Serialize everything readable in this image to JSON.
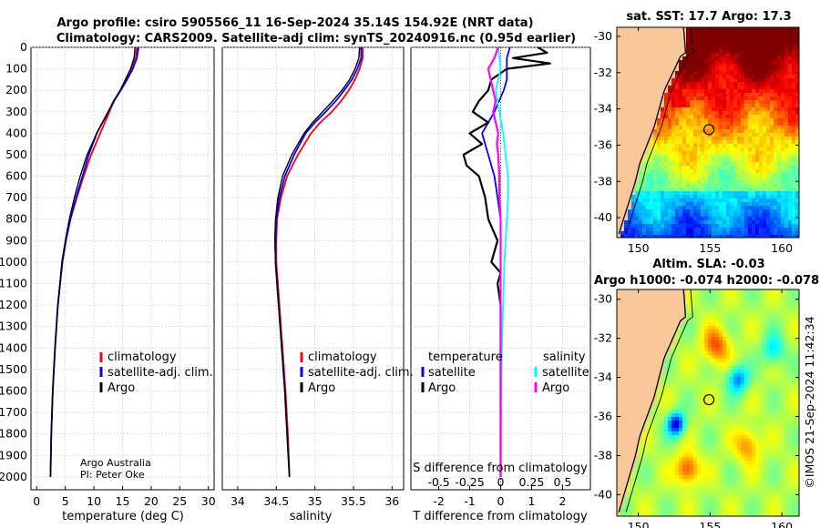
{
  "header": {
    "line1": "Argo profile: csiro 5905566_11 16-Sep-2024 35.14S 154.92E (NRT data)",
    "line2": "Climatology: CARS2009. Satellite-adj clim: synTS_20240916.nc (0.95d earlier)"
  },
  "credits": {
    "institution": "Argo Australia",
    "pi": "PI: Peter Oke"
  },
  "timestamp": "©IMOS 21-Sep-2024 11:42:34",
  "colors": {
    "climatology": "#ff0000",
    "satellite": "#0000ff",
    "argo": "#000000",
    "sat_t": "#00ffff",
    "sat_s_argo": "#ff00ff",
    "land": "#f8c89a"
  },
  "chart_data": [
    {
      "type": "line",
      "id": "temperature",
      "xlabel": "temperature (deg C)",
      "ylabel": "",
      "xlim": [
        -1,
        31
      ],
      "ylim": [
        2060,
        0
      ],
      "xticks": [
        0,
        5,
        10,
        15,
        20,
        25,
        30
      ],
      "yticks": [
        0,
        100,
        200,
        300,
        400,
        500,
        600,
        700,
        800,
        900,
        1000,
        1100,
        1200,
        1300,
        1400,
        1500,
        1600,
        1700,
        1800,
        1900,
        2000
      ],
      "legend": [
        "climatology",
        "satellite-adj. clim.",
        "Argo"
      ],
      "legend_position": "lower-right",
      "series": [
        {
          "name": "climatology",
          "color": "#ff0000",
          "width": 1.8,
          "depth": [
            0,
            50,
            100,
            150,
            200,
            250,
            300,
            400,
            500,
            600,
            700,
            800,
            900,
            1000,
            1200,
            1400,
            1600,
            1800,
            2000
          ],
          "values": [
            17.5,
            17.3,
            16.6,
            15.6,
            14.6,
            13.5,
            12.7,
            11.1,
            9.5,
            8.2,
            7.0,
            5.9,
            5.1,
            4.5,
            3.7,
            3.2,
            2.8,
            2.55,
            2.4
          ]
        },
        {
          "name": "satellite-adj. clim.",
          "color": "#0000ff",
          "width": 1.8,
          "depth": [
            0,
            50,
            100,
            150,
            200,
            250,
            300,
            400,
            500,
            600,
            700,
            800,
            900,
            1000,
            1200,
            1400,
            1600,
            1800,
            2000
          ],
          "values": [
            17.8,
            17.5,
            16.8,
            15.8,
            14.7,
            13.5,
            12.5,
            10.5,
            9.1,
            8.0,
            6.9,
            5.9,
            5.1,
            4.5,
            3.7,
            3.2,
            2.8,
            2.55,
            2.4
          ]
        },
        {
          "name": "Argo",
          "color": "#000000",
          "width": 1.4,
          "depth": [
            0,
            50,
            100,
            150,
            200,
            250,
            300,
            400,
            500,
            600,
            700,
            800,
            900,
            1000,
            1200,
            1400,
            1600,
            1800,
            2000
          ],
          "values": [
            17.2,
            17.0,
            16.4,
            15.5,
            14.6,
            13.4,
            12.5,
            10.5,
            8.8,
            7.6,
            6.6,
            5.7,
            5.0,
            4.4,
            3.7,
            3.2,
            2.8,
            2.55,
            2.4
          ]
        }
      ]
    },
    {
      "type": "line",
      "id": "salinity",
      "xlabel": "salinity",
      "xlim": [
        33.8,
        36.15
      ],
      "ylim": [
        2060,
        0
      ],
      "xticks": [
        34,
        34.5,
        35,
        35.5,
        36
      ],
      "legend": [
        "climatology",
        "satellite-adj. clim.",
        "Argo"
      ],
      "legend_position": "lower-right",
      "series": [
        {
          "name": "climatology",
          "color": "#ff0000",
          "width": 1.8,
          "depth": [
            0,
            50,
            100,
            150,
            200,
            250,
            300,
            350,
            400,
            500,
            600,
            700,
            800,
            900,
            1000,
            1200,
            1400,
            1600,
            1800,
            2000
          ],
          "values": [
            35.62,
            35.62,
            35.58,
            35.52,
            35.44,
            35.34,
            35.22,
            35.07,
            34.95,
            34.78,
            34.64,
            34.56,
            34.51,
            34.5,
            34.5,
            34.54,
            34.58,
            34.62,
            34.65,
            34.67
          ]
        },
        {
          "name": "satellite-adj. clim.",
          "color": "#0000ff",
          "width": 1.8,
          "depth": [
            0,
            50,
            100,
            150,
            200,
            250,
            300,
            350,
            400,
            500,
            600,
            700,
            800,
            900,
            1000,
            1200,
            1400,
            1600,
            1800,
            2000
          ],
          "values": [
            35.6,
            35.6,
            35.55,
            35.48,
            35.38,
            35.27,
            35.14,
            35.0,
            34.88,
            34.73,
            34.61,
            34.54,
            34.5,
            34.49,
            34.49,
            34.53,
            34.57,
            34.61,
            34.64,
            34.67
          ]
        },
        {
          "name": "Argo",
          "color": "#000000",
          "width": 1.4,
          "depth": [
            0,
            50,
            100,
            150,
            200,
            250,
            300,
            350,
            400,
            450,
            500,
            600,
            700,
            800,
            900,
            1000,
            1200,
            1400,
            1600,
            1800,
            2000
          ],
          "values": [
            35.58,
            35.57,
            35.52,
            35.45,
            35.35,
            35.23,
            35.1,
            34.97,
            34.86,
            34.78,
            34.7,
            34.58,
            34.52,
            34.49,
            34.48,
            34.49,
            34.53,
            34.57,
            34.61,
            34.64,
            34.67
          ]
        }
      ]
    },
    {
      "type": "line",
      "id": "difference",
      "xlabel": "T difference from climatology",
      "xlabel_top": "S difference from climatology",
      "xlim": [
        -2.9,
        2.9
      ],
      "ylim": [
        2060,
        0
      ],
      "xticks": [
        -2,
        -1,
        0,
        1,
        2
      ],
      "sticks": [
        "-0.5",
        "-0.25",
        "0",
        "0.25",
        "0.5"
      ],
      "legend_t_title": "temperature",
      "legend_s_title": "salinity",
      "legend_t": [
        "satellite",
        "Argo"
      ],
      "legend_s": [
        "satellite",
        "Argo"
      ],
      "series": [
        {
          "name": "T satellite",
          "color": "#0000ff",
          "width": 1.8,
          "depth": [
            0,
            50,
            100,
            150,
            200,
            300,
            400,
            500,
            600,
            800,
            1000,
            1200,
            1600,
            2000
          ],
          "values": [
            0.3,
            0.2,
            0.2,
            0.2,
            0.1,
            -0.2,
            -0.6,
            -0.4,
            -0.2,
            0.0,
            0.0,
            0.0,
            0.0,
            0.0
          ]
        },
        {
          "name": "T Argo",
          "color": "#000000",
          "width": 2.2,
          "depth": [
            0,
            25,
            50,
            75,
            100,
            150,
            200,
            250,
            300,
            350,
            400,
            450,
            500,
            550,
            600,
            700,
            800,
            900,
            1000,
            1050,
            1100,
            1200,
            1400,
            1600,
            1800,
            2000
          ],
          "values": [
            1.2,
            1.5,
            0.4,
            1.6,
            0.2,
            -0.3,
            -0.4,
            -0.7,
            -0.9,
            -0.4,
            -1.0,
            -0.6,
            -1.2,
            -1.1,
            -0.7,
            -0.5,
            -0.4,
            -0.1,
            -0.3,
            0.0,
            -0.1,
            0.0,
            0.0,
            0.0,
            0.0,
            0.0
          ]
        },
        {
          "name": "S satellite",
          "color": "#00ffff",
          "width": 1.8,
          "depth": [
            0,
            100,
            200,
            300,
            400,
            500,
            600,
            700,
            800,
            900,
            1000,
            1200,
            1400,
            1600,
            1800,
            2000
          ],
          "values": [
            -0.02,
            0.0,
            -0.04,
            -0.01,
            0.02,
            0.04,
            0.06,
            0.06,
            0.05,
            0.04,
            0.03,
            0.02,
            0.01,
            0.005,
            0.0,
            0.0
          ]
        },
        {
          "name": "S Argo",
          "color": "#ff00ff",
          "width": 2.2,
          "depth": [
            0,
            50,
            100,
            150,
            200,
            250,
            300,
            350,
            400,
            450,
            500,
            600,
            700,
            800,
            900,
            1000,
            1200,
            1400,
            1600,
            1800,
            2000
          ],
          "values": [
            -0.02,
            -0.05,
            -0.1,
            -0.08,
            -0.06,
            -0.04,
            -0.06,
            -0.04,
            -0.02,
            -0.03,
            -0.02,
            -0.01,
            -0.01,
            0.0,
            0.0,
            0.0,
            0.0,
            0.0,
            0.0,
            0.0,
            0.0
          ]
        }
      ]
    },
    {
      "type": "heatmap",
      "id": "sst_map",
      "title": "sat. SST: 17.7 Argo: 17.3",
      "xlim": [
        148.5,
        161.2
      ],
      "ylim": [
        -41.1,
        -29.5
      ],
      "xticks": [
        150,
        155,
        160
      ],
      "yticks": [
        -30,
        -32,
        -34,
        -36,
        -38,
        -40
      ],
      "argo_position": {
        "lon": 154.92,
        "lat": -35.14
      }
    },
    {
      "type": "heatmap",
      "id": "sla_map",
      "title_line1": "Altim. SLA: -0.03",
      "title_line2": "Argo h1000: -0.074 h2000: -0.078",
      "xlim": [
        148.5,
        161.2
      ],
      "ylim": [
        -41.1,
        -29.5
      ],
      "xticks": [
        150,
        155,
        160
      ],
      "yticks": [
        -30,
        -32,
        -34,
        -36,
        -38,
        -40
      ],
      "argo_position": {
        "lon": 154.92,
        "lat": -35.14
      }
    }
  ]
}
